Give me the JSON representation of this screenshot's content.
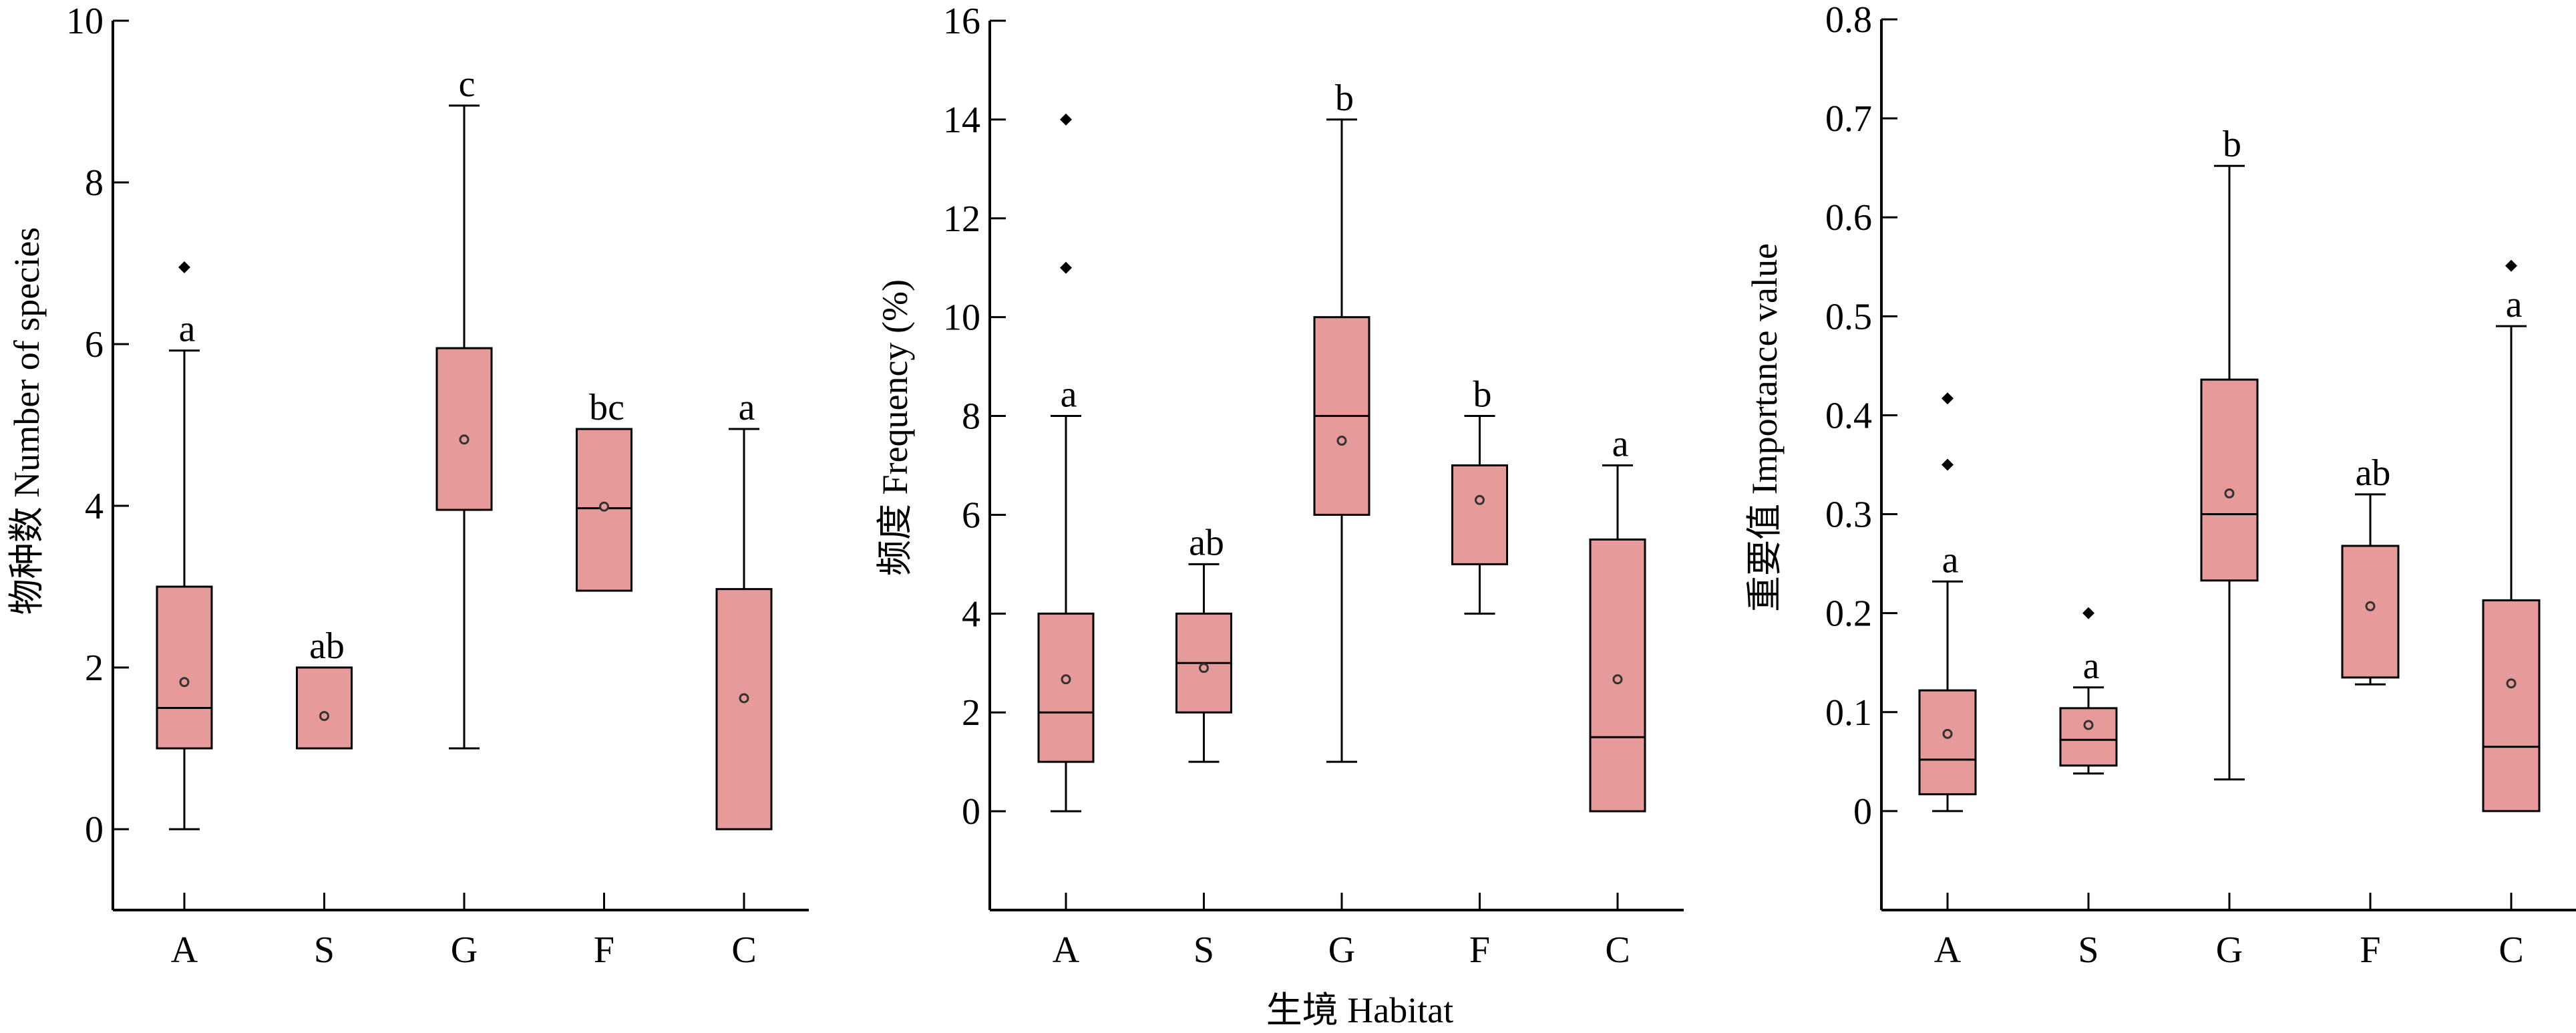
{
  "chart_data": [
    {
      "type": "box",
      "ylabel": "物种数 Number of species",
      "ylim": [
        -1,
        10
      ],
      "yticks": [
        "0",
        "2",
        "4",
        "6",
        "8",
        "10"
      ],
      "ytick_values": [
        0,
        2,
        4,
        6,
        8,
        10
      ],
      "categories": [
        "A",
        "S",
        "G",
        "F",
        "C"
      ],
      "box_color": "#E69A9A",
      "boxes": [
        {
          "whisker_low": 0,
          "q1": 1,
          "median": 1.5,
          "q3": 3,
          "whisker_high": 5.92,
          "mean": 1.82,
          "outliers": [
            6.95
          ],
          "letter": "a"
        },
        {
          "whisker_low": 1,
          "q1": 1,
          "median": null,
          "q3": 2,
          "whisker_high": 2,
          "mean": 1.4,
          "outliers": [],
          "letter": "ab"
        },
        {
          "whisker_low": 1,
          "q1": 3.95,
          "median": null,
          "q3": 5.95,
          "whisker_high": 8.95,
          "mean": 4.82,
          "outliers": [],
          "letter": "c"
        },
        {
          "whisker_low": 2.95,
          "q1": 2.95,
          "median": 3.97,
          "q3": 4.95,
          "whisker_high": 4.95,
          "mean": 3.99,
          "outliers": [],
          "letter": "bc"
        },
        {
          "whisker_low": 0,
          "q1": 0,
          "median": null,
          "q3": 2.97,
          "whisker_high": 4.95,
          "mean": 1.62,
          "outliers": [],
          "letter": "a"
        }
      ]
    },
    {
      "type": "box",
      "ylabel": "频度 Frequency (%)",
      "ylim": [
        -2,
        16
      ],
      "yticks": [
        "0",
        "2",
        "4",
        "6",
        "8",
        "10",
        "12",
        "14",
        "16"
      ],
      "ytick_values": [
        0,
        2,
        4,
        6,
        8,
        10,
        12,
        14,
        16
      ],
      "categories": [
        "A",
        "S",
        "G",
        "F",
        "C"
      ],
      "box_color": "#E69A9A",
      "boxes": [
        {
          "whisker_low": 0,
          "q1": 1,
          "median": 2,
          "q3": 4,
          "whisker_high": 8,
          "mean": 2.67,
          "outliers": [
            11,
            14
          ],
          "letter": "a"
        },
        {
          "whisker_low": 1,
          "q1": 2,
          "median": 3,
          "q3": 4,
          "whisker_high": 5,
          "mean": 2.9,
          "outliers": [],
          "letter": "ab"
        },
        {
          "whisker_low": 1,
          "q1": 6,
          "median": 8,
          "q3": 10,
          "whisker_high": 14,
          "mean": 7.5,
          "outliers": [],
          "letter": "b"
        },
        {
          "whisker_low": 4,
          "q1": 5,
          "median": null,
          "q3": 7,
          "whisker_high": 8,
          "mean": 6.3,
          "outliers": [],
          "letter": "b"
        },
        {
          "whisker_low": 0,
          "q1": 0,
          "median": 1.5,
          "q3": 5.5,
          "whisker_high": 7,
          "mean": 2.67,
          "outliers": [],
          "letter": "a"
        }
      ]
    },
    {
      "type": "box",
      "ylabel": "重要值 Importance value",
      "ylim": [
        -0.1,
        0.8
      ],
      "yticks": [
        "0",
        "0.1",
        "0.2",
        "0.3",
        "0.4",
        "0.5",
        "0.6",
        "0.7",
        "0.8"
      ],
      "ytick_values": [
        0,
        0.1,
        0.2,
        0.3,
        0.4,
        0.5,
        0.6,
        0.7,
        0.8
      ],
      "categories": [
        "A",
        "S",
        "G",
        "F",
        "C"
      ],
      "box_color": "#E69A9A",
      "boxes": [
        {
          "whisker_low": 0,
          "q1": 0.017,
          "median": 0.052,
          "q3": 0.122,
          "whisker_high": 0.232,
          "mean": 0.078,
          "outliers": [
            0.35,
            0.417
          ],
          "letter": "a"
        },
        {
          "whisker_low": 0.038,
          "q1": 0.046,
          "median": 0.072,
          "q3": 0.104,
          "whisker_high": 0.125,
          "mean": 0.087,
          "outliers": [
            0.2
          ],
          "letter": "a"
        },
        {
          "whisker_low": 0.032,
          "q1": 0.233,
          "median": 0.3,
          "q3": 0.436,
          "whisker_high": 0.652,
          "mean": 0.321,
          "outliers": [],
          "letter": "b"
        },
        {
          "whisker_low": 0.128,
          "q1": 0.135,
          "median": null,
          "q3": 0.268,
          "whisker_high": 0.32,
          "mean": 0.207,
          "outliers": [],
          "letter": "ab"
        },
        {
          "whisker_low": 0,
          "q1": 0,
          "median": 0.065,
          "q3": 0.213,
          "whisker_high": 0.49,
          "mean": 0.129,
          "outliers": [
            0.551
          ],
          "letter": "a"
        }
      ]
    }
  ],
  "shared_xlabel": "生境 Habitat"
}
